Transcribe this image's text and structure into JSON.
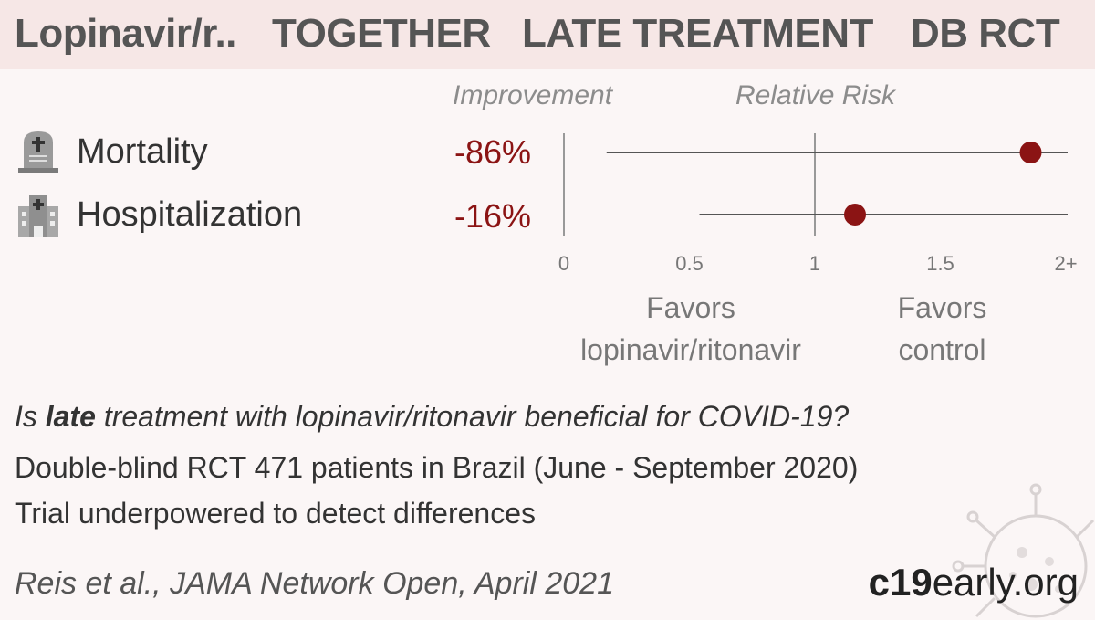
{
  "header": {
    "drug": "Lopinavir/r..",
    "trial": "TOGETHER",
    "stage": "LATE TREATMENT",
    "design": "DB RCT"
  },
  "columns": {
    "improvement": "Improvement",
    "relative_risk": "Relative Risk"
  },
  "chart_data": {
    "type": "forest",
    "rows": [
      {
        "label": "Mortality",
        "icon": "tombstone-icon",
        "improvement": "-86%",
        "rr": 1.86,
        "ci_low": 0.17,
        "ci_high": 2.0,
        "ci_high_open": true
      },
      {
        "label": "Hospitalization",
        "icon": "hospital-icon",
        "improvement": "-16%",
        "rr": 1.16,
        "ci_low": 0.54,
        "ci_high": 2.0,
        "ci_high_open": true
      }
    ],
    "x_ticks": [
      {
        "v": 0,
        "label": "0"
      },
      {
        "v": 0.5,
        "label": "0.5"
      },
      {
        "v": 1,
        "label": "1"
      },
      {
        "v": 1.5,
        "label": "1.5"
      },
      {
        "v": 2,
        "label": "2+"
      }
    ],
    "xlim": [
      0,
      2
    ],
    "reference_line": 1,
    "favors_left": [
      "Favors",
      "lopinavir/ritonavir"
    ],
    "favors_right": [
      "Favors",
      "control"
    ],
    "colors": {
      "point": "#8b1414",
      "line": "#555555",
      "improvement_text": "#8b1414"
    }
  },
  "summary": {
    "q_pre": "Is ",
    "q_bold": "late",
    "q_post": " treatment with lopinavir/ritonavir beneficial for COVID-19?",
    "line2": "Double-blind RCT 471 patients in Brazil (June - September 2020)",
    "line3": "Trial underpowered to detect differences"
  },
  "citation": "Reis et al., JAMA Network Open, April 2021",
  "brand": {
    "bold": "c19",
    "rest": "early.org"
  }
}
